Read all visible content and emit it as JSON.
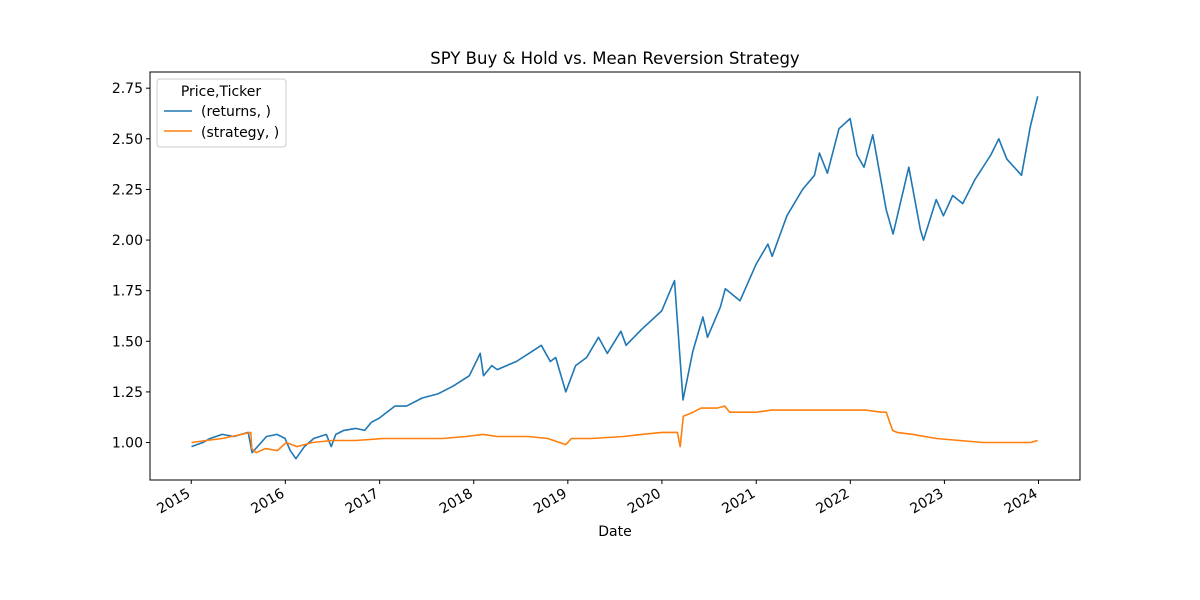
{
  "chart_data": {
    "type": "line",
    "title": "SPY Buy & Hold vs. Mean Reversion Strategy",
    "xlabel": "Date",
    "ylabel": "",
    "x_ticks": [
      "2015",
      "2016",
      "2017",
      "2018",
      "2019",
      "2020",
      "2021",
      "2022",
      "2023",
      "2024"
    ],
    "y_ticks": [
      "1.00",
      "1.25",
      "1.50",
      "1.75",
      "2.00",
      "2.25",
      "2.50",
      "2.75"
    ],
    "xlim": [
      "2014-07-25",
      "2024-06-10"
    ],
    "ylim": [
      0.815,
      2.83
    ],
    "grid": false,
    "legend": {
      "title": "Price,Ticker",
      "position": "upper left"
    },
    "series": [
      {
        "name": "(returns, )",
        "color": "#1f77b4",
        "x": [
          "2015-01-02",
          "2015-02-15",
          "2015-03-15",
          "2015-05-01",
          "2015-06-15",
          "2015-08-10",
          "2015-08-25",
          "2015-09-15",
          "2015-10-20",
          "2015-11-30",
          "2015-12-31",
          "2016-01-20",
          "2016-02-11",
          "2016-03-15",
          "2016-04-20",
          "2016-06-08",
          "2016-06-27",
          "2016-07-15",
          "2016-08-15",
          "2016-09-30",
          "2016-11-04",
          "2016-11-30",
          "2016-12-30",
          "2017-03-01",
          "2017-04-15",
          "2017-06-15",
          "2017-08-15",
          "2017-10-15",
          "2017-12-15",
          "2018-01-26",
          "2018-02-08",
          "2018-03-12",
          "2018-04-02",
          "2018-06-15",
          "2018-08-15",
          "2018-09-20",
          "2018-10-25",
          "2018-11-15",
          "2018-12-24",
          "2019-01-31",
          "2019-03-15",
          "2019-04-30",
          "2019-06-03",
          "2019-07-26",
          "2019-08-15",
          "2019-10-15",
          "2019-12-31",
          "2020-02-19",
          "2020-03-23",
          "2020-04-30",
          "2020-06-08",
          "2020-06-26",
          "2020-08-15",
          "2020-09-03",
          "2020-10-30",
          "2020-12-31",
          "2021-02-15",
          "2021-03-04",
          "2021-04-30",
          "2021-06-30",
          "2021-08-15",
          "2021-09-03",
          "2021-10-04",
          "2021-11-18",
          "2021-12-31",
          "2022-01-27",
          "2022-02-23",
          "2022-03-29",
          "2022-05-20",
          "2022-06-16",
          "2022-08-16",
          "2022-09-30",
          "2022-10-12",
          "2022-11-30",
          "2022-12-28",
          "2023-02-02",
          "2023-03-13",
          "2023-04-30",
          "2023-06-30",
          "2023-07-31",
          "2023-08-31",
          "2023-10-27",
          "2023-11-30",
          "2023-12-29"
        ],
        "values": [
          0.98,
          1.0,
          1.02,
          1.04,
          1.03,
          1.05,
          0.95,
          0.98,
          1.03,
          1.04,
          1.02,
          0.96,
          0.92,
          0.98,
          1.02,
          1.04,
          0.98,
          1.04,
          1.06,
          1.07,
          1.06,
          1.1,
          1.12,
          1.18,
          1.18,
          1.22,
          1.24,
          1.28,
          1.33,
          1.44,
          1.33,
          1.38,
          1.36,
          1.4,
          1.45,
          1.48,
          1.4,
          1.42,
          1.25,
          1.38,
          1.42,
          1.52,
          1.44,
          1.55,
          1.48,
          1.56,
          1.65,
          1.8,
          1.21,
          1.45,
          1.62,
          1.52,
          1.67,
          1.76,
          1.7,
          1.88,
          1.98,
          1.92,
          2.12,
          2.25,
          2.32,
          2.43,
          2.33,
          2.55,
          2.6,
          2.42,
          2.36,
          2.52,
          2.15,
          2.03,
          2.36,
          2.05,
          2.0,
          2.2,
          2.12,
          2.22,
          2.18,
          2.3,
          2.42,
          2.5,
          2.4,
          2.32,
          2.56,
          2.71
        ]
      },
      {
        "name": "(strategy, )",
        "color": "#ff7f0e",
        "x": [
          "2015-01-02",
          "2015-03-01",
          "2015-05-01",
          "2015-07-15",
          "2015-08-20",
          "2015-08-24",
          "2015-09-10",
          "2015-10-15",
          "2015-12-01",
          "2016-01-05",
          "2016-02-15",
          "2016-04-15",
          "2016-07-01",
          "2016-10-01",
          "2017-01-15",
          "2017-05-01",
          "2017-09-01",
          "2017-12-01",
          "2018-02-06",
          "2018-04-01",
          "2018-08-01",
          "2018-10-15",
          "2018-12-24",
          "2019-01-15",
          "2019-04-01",
          "2019-08-05",
          "2019-10-15",
          "2020-01-01",
          "2020-03-01",
          "2020-03-12",
          "2020-03-24",
          "2020-05-01",
          "2020-06-01",
          "2020-08-01",
          "2020-09-01",
          "2020-09-20",
          "2021-01-01",
          "2021-03-01",
          "2021-05-01",
          "2021-08-01",
          "2021-11-01",
          "2022-01-01",
          "2022-03-01",
          "2022-05-01",
          "2022-05-20",
          "2022-06-14",
          "2022-07-01",
          "2022-09-01",
          "2022-12-01",
          "2023-03-01",
          "2023-06-01",
          "2023-09-01",
          "2023-12-01",
          "2023-12-29"
        ],
        "values": [
          1.0,
          1.01,
          1.02,
          1.04,
          1.05,
          0.97,
          0.95,
          0.97,
          0.96,
          1.0,
          0.98,
          1.0,
          1.01,
          1.01,
          1.02,
          1.02,
          1.02,
          1.03,
          1.04,
          1.03,
          1.03,
          1.02,
          0.99,
          1.02,
          1.02,
          1.03,
          1.04,
          1.05,
          1.05,
          0.98,
          1.13,
          1.15,
          1.17,
          1.17,
          1.18,
          1.15,
          1.15,
          1.16,
          1.16,
          1.16,
          1.16,
          1.16,
          1.16,
          1.15,
          1.15,
          1.06,
          1.05,
          1.04,
          1.02,
          1.01,
          1.0,
          1.0,
          1.0,
          1.01
        ]
      }
    ]
  }
}
